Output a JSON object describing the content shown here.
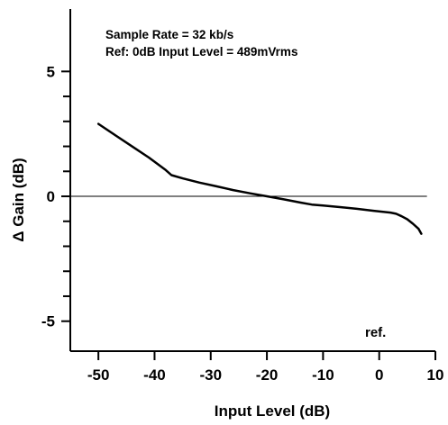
{
  "chart_data": {
    "type": "line",
    "title": "",
    "xlabel": "Input Level (dB)",
    "ylabel": "Δ Gain (dB)",
    "xlim": [
      -55,
      10
    ],
    "ylim": [
      -6.2,
      7.5
    ],
    "x_ticks": [
      -50,
      -40,
      -30,
      -20,
      -10,
      0,
      10
    ],
    "x_tick_labels": [
      "-50",
      "-40",
      "-30",
      "-20",
      "-10",
      "0",
      "10"
    ],
    "y_ticks": [
      -5,
      0,
      5
    ],
    "y_tick_labels": [
      "-5",
      "0",
      "5"
    ],
    "y_minor_ticks": [
      -4,
      -3,
      -2,
      -1,
      1,
      2,
      3,
      4
    ],
    "grid": false,
    "legend": "none",
    "annotations": [
      "Sample Rate = 32 kb/s",
      "Ref: 0dB Input Level = 489mVrms"
    ],
    "ref_label": "ref.",
    "reference_line_y": 0,
    "series": [
      {
        "x": [
          -50,
          -47,
          -44,
          -41,
          -38,
          -37,
          -35,
          -32,
          -29,
          -26,
          -23,
          -20,
          -17,
          -14,
          -12,
          -10,
          -7,
          -4,
          -1,
          2,
          3,
          4,
          5,
          6,
          7,
          7.5
        ],
        "y": [
          2.9,
          2.45,
          2.0,
          1.55,
          1.05,
          0.85,
          0.72,
          0.55,
          0.4,
          0.25,
          0.12,
          0.0,
          -0.12,
          -0.25,
          -0.33,
          -0.37,
          -0.43,
          -0.5,
          -0.58,
          -0.65,
          -0.7,
          -0.8,
          -0.92,
          -1.1,
          -1.3,
          -1.5
        ]
      }
    ]
  }
}
